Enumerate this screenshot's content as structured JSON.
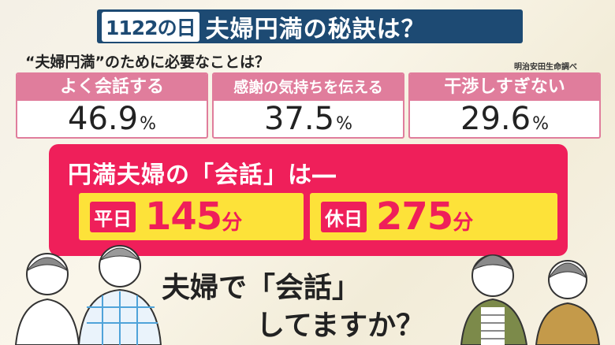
{
  "title": {
    "tag": "1122の日",
    "main": "夫婦円満の秘訣は？"
  },
  "subtitle": "“夫婦円満”のために必要なことは？",
  "source": "明治安田生命調べ",
  "cards": [
    {
      "label": "よく会話する",
      "value": "46.9",
      "unit": "%"
    },
    {
      "label": "感謝の気持ちを伝える",
      "value": "37.5",
      "unit": "%"
    },
    {
      "label": "干渉しすぎない",
      "value": "29.6",
      "unit": "%"
    }
  ],
  "conversation": {
    "heading": "円満夫婦の「会話」は―",
    "weekday": {
      "label": "平日",
      "value": "145",
      "unit": "分"
    },
    "holiday": {
      "label": "休日",
      "value": "275",
      "unit": "分"
    }
  },
  "question": {
    "line1": "夫婦で「会話」",
    "line2": "してますか？"
  },
  "colors": {
    "navy": "#1d4a73",
    "pink": "#e07d9c",
    "red": "#ef1f5a",
    "yellow": "#fde239"
  }
}
